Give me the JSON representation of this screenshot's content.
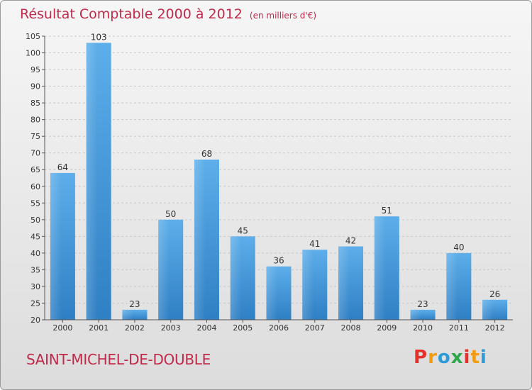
{
  "title": "Résultat Comptable 2000 à 2012",
  "unit": "(en milliers d'€)",
  "commune": "SAINT-MICHEL-DE-DOUBLE",
  "logo": {
    "letters": [
      "P",
      "r",
      "o",
      "x",
      "i",
      "t",
      "i"
    ],
    "colors": [
      "#e4312b",
      "#f39c12",
      "#2e9bd6",
      "#2aa84a",
      "#e4312b",
      "#f39c12",
      "#2e9bd6"
    ]
  },
  "chart_data": {
    "type": "bar",
    "title": "Résultat Comptable 2000 à 2012",
    "ylabel": "(en milliers d'€)",
    "xlabel": "",
    "categories": [
      "2000",
      "2001",
      "2002",
      "2003",
      "2004",
      "2005",
      "2006",
      "2007",
      "2008",
      "2009",
      "2010",
      "2011",
      "2012"
    ],
    "values": [
      64,
      103,
      23,
      50,
      68,
      45,
      36,
      41,
      42,
      51,
      23,
      40,
      26
    ],
    "ylim": [
      20,
      105
    ],
    "yticks": [
      20,
      25,
      30,
      35,
      40,
      45,
      50,
      55,
      60,
      65,
      70,
      75,
      80,
      85,
      90,
      95,
      100,
      105
    ],
    "grid": true,
    "bar_color": "#4a9fe0"
  }
}
